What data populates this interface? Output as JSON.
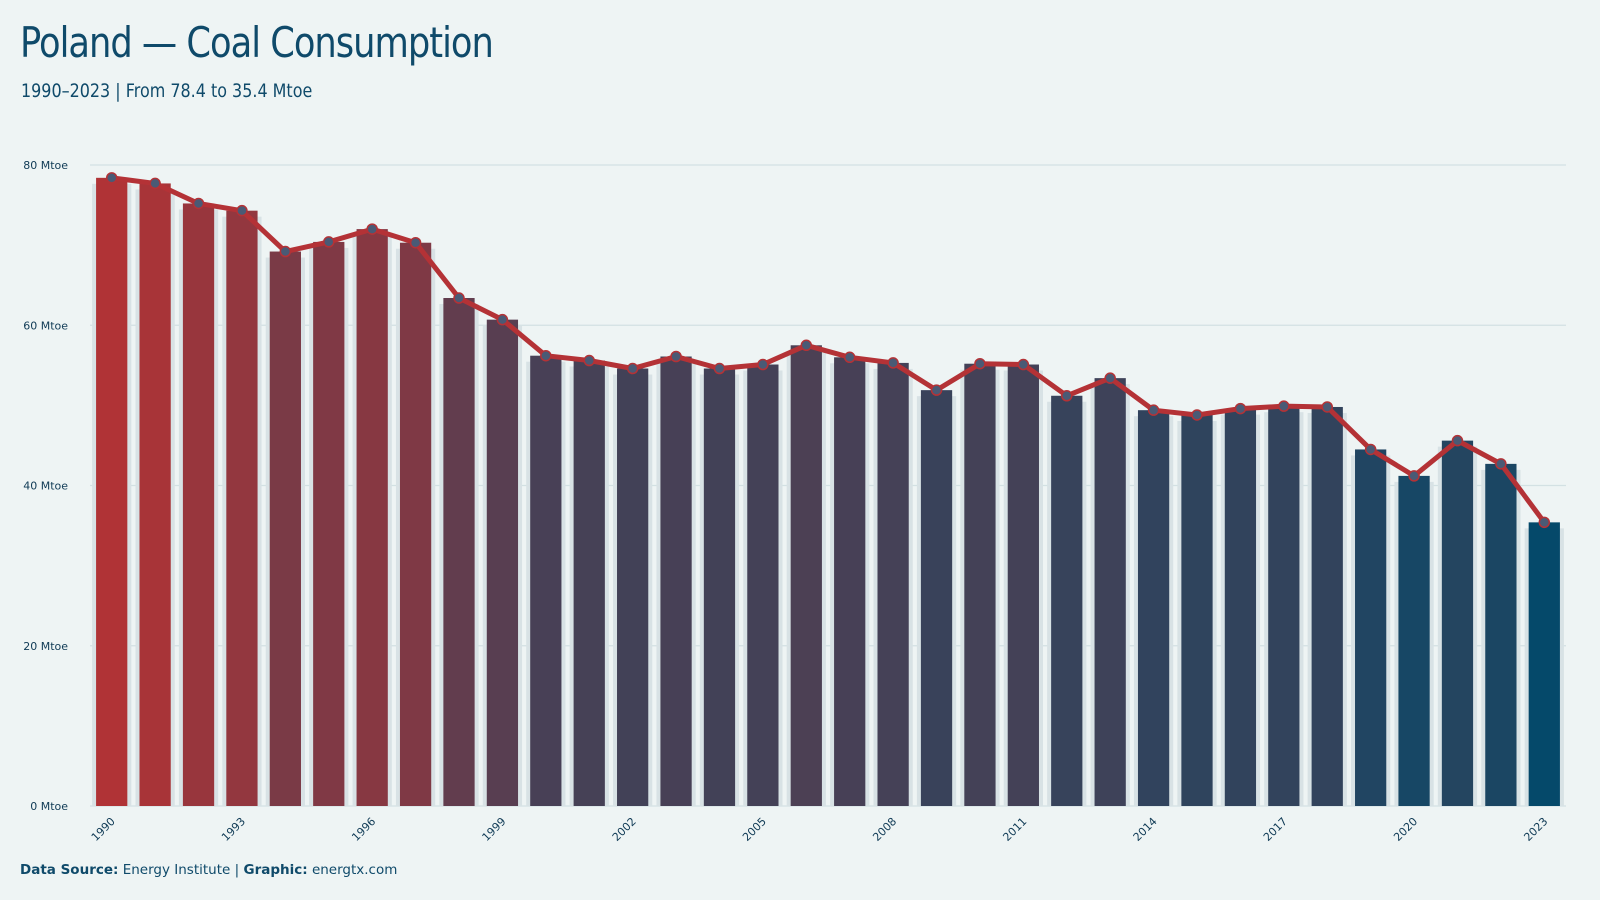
{
  "header": {
    "title": "Poland — Coal Consumption",
    "subtitle": "1990–2023 | From 78.4 to 35.4 Mtoe"
  },
  "footer": {
    "source_label": "Data Source:",
    "source_value": "Energy Institute",
    "separator": "|",
    "graphic_label": "Graphic:",
    "graphic_value": "energtx.com"
  },
  "colors": {
    "background": "#eef4f4",
    "bar_start": "#b03336",
    "bar_end": "#05496a",
    "line": "#b43236",
    "marker_fill": "#4a5a75",
    "grid": "#d3e1e3",
    "bar_backdrop": "#d8e2e5"
  },
  "chart_data": {
    "type": "bar",
    "title": "Poland — Coal Consumption",
    "subtitle": "1990–2023 | From 78.4 to 35.4 Mtoe",
    "xlabel": "",
    "ylabel": "",
    "unit": "Mtoe",
    "ylim": [
      0,
      80
    ],
    "yticks": [
      0,
      20,
      40,
      60,
      80
    ],
    "ytick_labels": [
      "0 Mtoe",
      "20 Mtoe",
      "40 Mtoe",
      "60 Mtoe",
      "80 Mtoe"
    ],
    "xtick_labels": [
      "1990",
      "1993",
      "1996",
      "1999",
      "2002",
      "2005",
      "2008",
      "2011",
      "2014",
      "2017",
      "2020",
      "2023"
    ],
    "grid": true,
    "overlay": "line with markers",
    "categories": [
      "1990",
      "1991",
      "1992",
      "1993",
      "1994",
      "1995",
      "1996",
      "1997",
      "1998",
      "1999",
      "2000",
      "2001",
      "2002",
      "2003",
      "2004",
      "2005",
      "2006",
      "2007",
      "2008",
      "2009",
      "2010",
      "2011",
      "2012",
      "2013",
      "2014",
      "2015",
      "2016",
      "2017",
      "2018",
      "2019",
      "2020",
      "2021",
      "2022",
      "2023"
    ],
    "values": [
      78.4,
      77.7,
      75.2,
      74.3,
      69.2,
      70.4,
      72.0,
      70.3,
      63.4,
      60.7,
      56.2,
      55.6,
      54.6,
      56.1,
      54.6,
      55.1,
      57.5,
      56.0,
      55.3,
      51.9,
      55.2,
      55.1,
      51.2,
      53.4,
      49.4,
      48.8,
      49.6,
      49.9,
      49.8,
      44.5,
      41.2,
      45.6,
      42.7,
      35.4
    ]
  }
}
